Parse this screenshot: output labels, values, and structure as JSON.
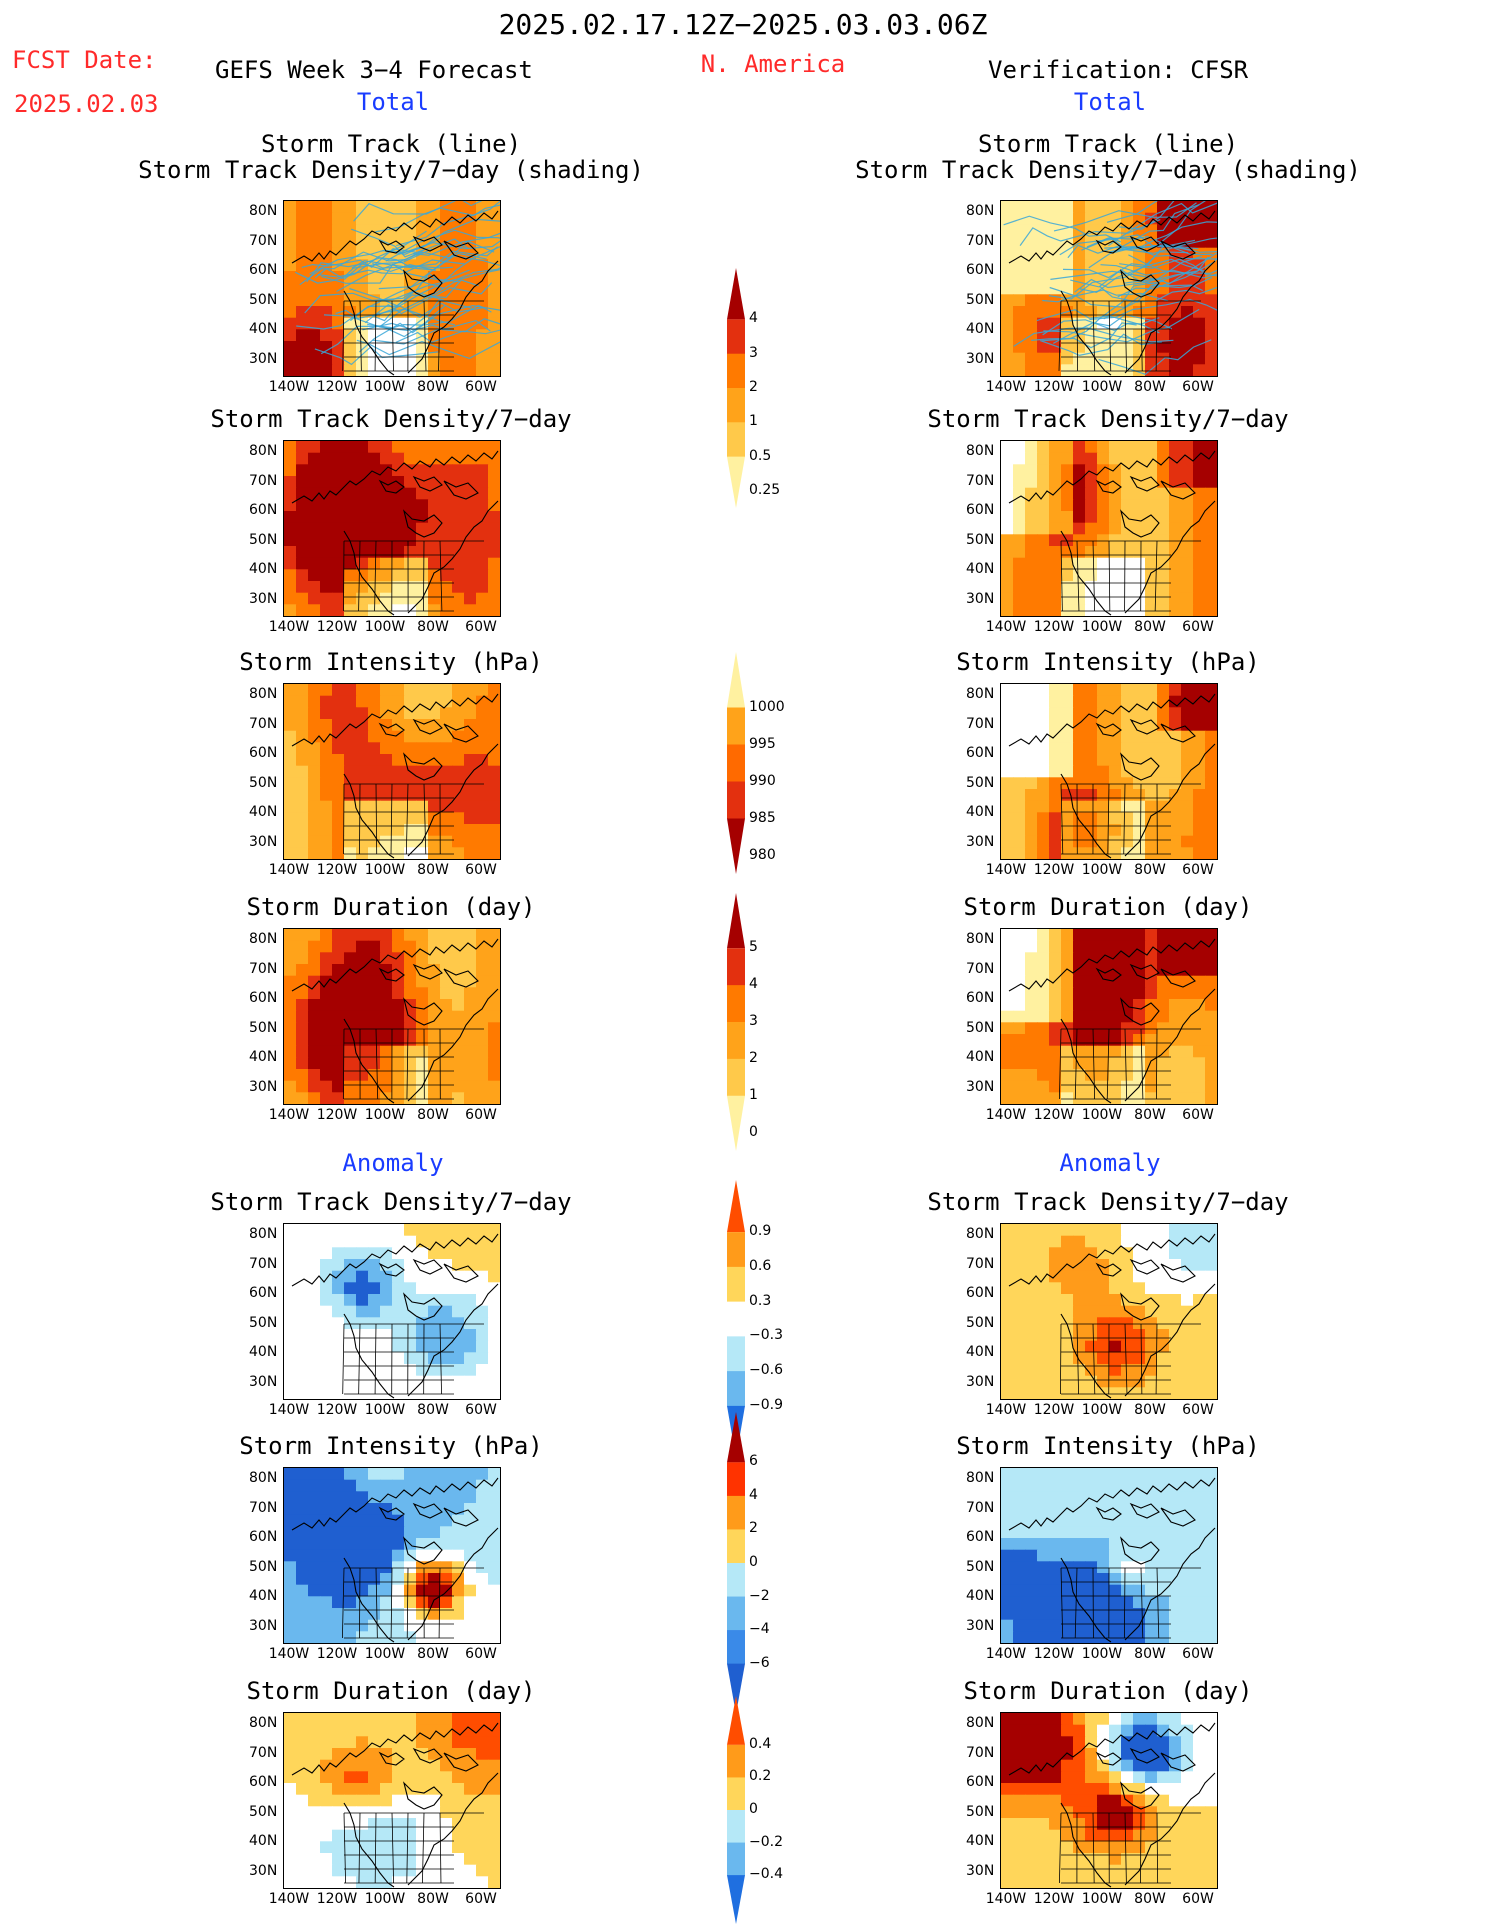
{
  "header": {
    "date_range": "2025.02.17.12Z−2025.03.03.06Z",
    "fcst_label": "FCST Date:",
    "fcst_date": "2025.02.03",
    "model_title": "GEFS Week 3−4 Forecast",
    "region": "N. America",
    "verification": "Verification: CFSR"
  },
  "sections": {
    "total_left": "Total",
    "total_right": "Total",
    "anomaly_left": "Anomaly",
    "anomaly_right": "Anomaly"
  },
  "panel_titles": {
    "track_line": "Storm Track (line)",
    "track_shading": "Storm Track Density/7−day (shading)",
    "density": "Storm Track Density/7−day",
    "intensity": "Storm Intensity (hPa)",
    "duration": "Storm Duration (day)"
  },
  "axes": {
    "y_ticks": [
      "80N",
      "70N",
      "60N",
      "50N",
      "40N",
      "30N"
    ],
    "x_ticks": [
      "140W",
      "120W",
      "100W",
      "80W",
      "60W"
    ]
  },
  "colorbars": [
    {
      "name": "total-density",
      "labels": [
        "4",
        "3",
        "2",
        "1",
        "0.5",
        "0.25"
      ],
      "colors": [
        "#a50000",
        "#e3300f",
        "#ff7a00",
        "#ffa31a",
        "#ffc94a",
        "#fff1a0"
      ]
    },
    {
      "name": "total-intensity",
      "labels": [
        "1000",
        "995",
        "990",
        "985",
        "980"
      ],
      "colors": [
        "#fff1a0",
        "#ffa31a",
        "#ff6a00",
        "#e3300f",
        "#a50000"
      ]
    },
    {
      "name": "total-duration",
      "labels": [
        "5",
        "4",
        "3",
        "2",
        "1",
        "0"
      ],
      "colors": [
        "#a50000",
        "#e3300f",
        "#ff7a00",
        "#ffa31a",
        "#ffc94a",
        "#fff1a0"
      ]
    },
    {
      "name": "anomaly-density",
      "labels": [
        "0.9",
        "0.6",
        "0.3",
        "−0.3",
        "−0.6",
        "−0.9"
      ],
      "colors": [
        "#ff4d00",
        "#ff9b1a",
        "#ffd65a",
        "#ffffff",
        "#b5e8f7",
        "#6ab8ee",
        "#1f6fe0"
      ]
    },
    {
      "name": "anomaly-intensity",
      "labels": [
        "6",
        "4",
        "2",
        "0",
        "−2",
        "−4",
        "−6"
      ],
      "colors": [
        "#a50000",
        "#ff3300",
        "#ff9b1a",
        "#ffd65a",
        "#b5e8f7",
        "#6ab8ee",
        "#3a8ae8",
        "#1f5fd0"
      ]
    },
    {
      "name": "anomaly-duration",
      "labels": [
        "0.4",
        "0.2",
        "0",
        "−0.2",
        "−0.4"
      ],
      "colors": [
        "#ff4d00",
        "#ff9b1a",
        "#ffd65a",
        "#b5e8f7",
        "#6ab8ee",
        "#1f6fe0"
      ]
    }
  ],
  "chart_data": [
    {
      "type": "heatmap",
      "panel": "forecast-total-track-density",
      "title": "Storm Track (line) / Storm Track Density/7−day (shading)",
      "scale": [
        0.25,
        0.5,
        1,
        2,
        3,
        4
      ]
    },
    {
      "type": "heatmap",
      "panel": "verification-total-track-density",
      "title": "Storm Track (line) / Storm Track Density/7−day (shading)",
      "scale": [
        0.25,
        0.5,
        1,
        2,
        3,
        4
      ]
    },
    {
      "type": "heatmap",
      "panel": "forecast-total-density",
      "title": "Storm Track Density/7−day",
      "scale": [
        0.25,
        0.5,
        1,
        2,
        3,
        4
      ]
    },
    {
      "type": "heatmap",
      "panel": "verification-total-density",
      "title": "Storm Track Density/7−day",
      "scale": [
        0.25,
        0.5,
        1,
        2,
        3,
        4
      ]
    },
    {
      "type": "heatmap",
      "panel": "forecast-total-intensity",
      "title": "Storm Intensity (hPa)",
      "scale": [
        980,
        985,
        990,
        995,
        1000
      ]
    },
    {
      "type": "heatmap",
      "panel": "verification-total-intensity",
      "title": "Storm Intensity (hPa)",
      "scale": [
        980,
        985,
        990,
        995,
        1000
      ]
    },
    {
      "type": "heatmap",
      "panel": "forecast-total-duration",
      "title": "Storm Duration (day)",
      "scale": [
        0,
        1,
        2,
        3,
        4,
        5
      ]
    },
    {
      "type": "heatmap",
      "panel": "verification-total-duration",
      "title": "Storm Duration (day)",
      "scale": [
        0,
        1,
        2,
        3,
        4,
        5
      ]
    },
    {
      "type": "heatmap",
      "panel": "forecast-anomaly-density",
      "title": "Storm Track Density/7−day",
      "scale": [
        -0.9,
        -0.6,
        -0.3,
        0.3,
        0.6,
        0.9
      ]
    },
    {
      "type": "heatmap",
      "panel": "verification-anomaly-density",
      "title": "Storm Track Density/7−day",
      "scale": [
        -0.9,
        -0.6,
        -0.3,
        0.3,
        0.6,
        0.9
      ]
    },
    {
      "type": "heatmap",
      "panel": "forecast-anomaly-intensity",
      "title": "Storm Intensity (hPa)",
      "scale": [
        -6,
        -4,
        -2,
        0,
        2,
        4,
        6
      ]
    },
    {
      "type": "heatmap",
      "panel": "verification-anomaly-intensity",
      "title": "Storm Intensity (hPa)",
      "scale": [
        -6,
        -4,
        -2,
        0,
        2,
        4,
        6
      ]
    },
    {
      "type": "heatmap",
      "panel": "forecast-anomaly-duration",
      "title": "Storm Duration (day)",
      "scale": [
        -0.4,
        -0.2,
        0,
        0.2,
        0.4
      ]
    },
    {
      "type": "heatmap",
      "panel": "verification-anomaly-duration",
      "title": "Storm Duration (day)",
      "scale": [
        -0.4,
        -0.2,
        0,
        0.2,
        0.4
      ]
    }
  ]
}
